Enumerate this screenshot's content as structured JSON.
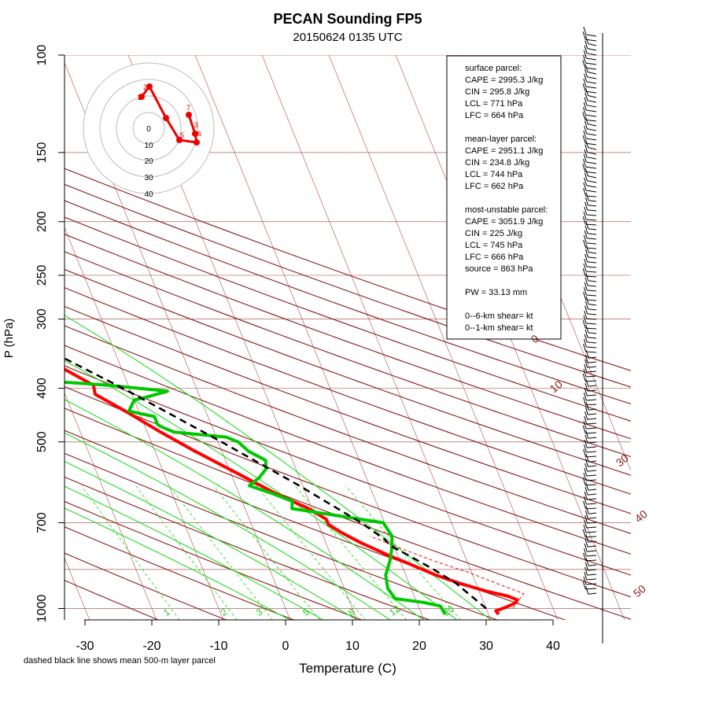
{
  "title": "PECAN Sounding FP5",
  "subtitle": "20150624 0135 UTC",
  "footnote": "dashed black line shows mean 500-m layer parcel",
  "chart_data": {
    "type": "line",
    "subtype": "skew-T log-P diagram",
    "xlabel": "Temperature (C)",
    "ylabel": "P (hPa)",
    "x_ticks": [
      "-30",
      "-20",
      "-10",
      "0",
      "10",
      "20",
      "30",
      "40"
    ],
    "y_ticks": [
      "100",
      "150",
      "200",
      "250",
      "300",
      "400",
      "500",
      "700",
      "1000"
    ],
    "y_scale": "log",
    "ylim": [
      100,
      1050
    ],
    "dry_adiabat_labels": [
      "0",
      "10",
      "30",
      "40",
      "50"
    ],
    "moist_adiabat_labels": [
      "1",
      "2",
      "3",
      "5",
      "8",
      "12",
      "20"
    ],
    "colors": {
      "temperature": "#ff0000",
      "dewpoint": "#00c800",
      "isotherm": "#8b0000",
      "mixing_ratio": "#00ee00",
      "parcel": "#000000",
      "isobar": "#b06060"
    },
    "series": [
      {
        "name": "temperature",
        "points": [
          [
            1025,
            31.5
          ],
          [
            1010,
            31.3
          ],
          [
            995,
            33.0
          ],
          [
            980,
            34.5
          ],
          [
            965,
            35.2
          ],
          [
            950,
            34.0
          ],
          [
            930,
            31.0
          ],
          [
            900,
            27.5
          ],
          [
            870,
            24.5
          ],
          [
            840,
            22.0
          ],
          [
            800,
            18.5
          ],
          [
            760,
            15.2
          ],
          [
            730,
            13.0
          ],
          [
            705,
            11.5
          ],
          [
            690,
            11.5
          ],
          [
            660,
            9.5
          ],
          [
            620,
            5.5
          ],
          [
            570,
            1.0
          ],
          [
            520,
            -4.0
          ],
          [
            480,
            -8.0
          ],
          [
            440,
            -12.0
          ],
          [
            410,
            -15.5
          ],
          [
            395,
            -15.2
          ],
          [
            370,
            -18.5
          ],
          [
            330,
            -24.0
          ],
          [
            290,
            -30.0
          ],
          [
            250,
            -36.5
          ],
          [
            210,
            -44.0
          ],
          [
            180,
            -50.0
          ],
          [
            165,
            -52.5
          ],
          [
            160,
            -51.0
          ],
          [
            150,
            -52.0
          ],
          [
            140,
            -53.0
          ],
          [
            130,
            -54.5
          ],
          [
            120,
            -56.0
          ],
          [
            115,
            -57.0
          ],
          [
            108,
            -57.5
          ],
          [
            100,
            -58.5
          ]
        ]
      },
      {
        "name": "dewpoint",
        "points": [
          [
            1025,
            23.5
          ],
          [
            990,
            23.3
          ],
          [
            975,
            21.0
          ],
          [
            960,
            17.0
          ],
          [
            920,
            16.5
          ],
          [
            870,
            17.0
          ],
          [
            820,
            18.5
          ],
          [
            780,
            19.5
          ],
          [
            740,
            20.3
          ],
          [
            700,
            19.8
          ],
          [
            660,
            7.0
          ],
          [
            640,
            7.5
          ],
          [
            620,
            5.0
          ],
          [
            600,
            2.0
          ],
          [
            580,
            4.0
          ],
          [
            560,
            5.5
          ],
          [
            540,
            6.0
          ],
          [
            520,
            4.0
          ],
          [
            500,
            3.0
          ],
          [
            490,
            1.5
          ],
          [
            480,
            -6.0
          ],
          [
            470,
            -7.5
          ],
          [
            465,
            -8.0
          ],
          [
            450,
            -8.0
          ],
          [
            440,
            -11.5
          ],
          [
            420,
            -10.0
          ],
          [
            415,
            -8.0
          ],
          [
            405,
            -4.5
          ],
          [
            395,
            -13.0
          ],
          [
            385,
            -26.0
          ],
          [
            370,
            -37.0
          ],
          [
            350,
            -37.5
          ],
          [
            330,
            -38.5
          ],
          [
            310,
            -37.0
          ],
          [
            300,
            -34.0
          ],
          [
            290,
            -36.5
          ],
          [
            285,
            -34.0
          ],
          [
            270,
            -25.0
          ],
          [
            265,
            -31.0
          ],
          [
            255,
            -38.5
          ],
          [
            245,
            -41.0
          ],
          [
            240,
            -33.0
          ],
          [
            232,
            -32.0
          ],
          [
            225,
            -31.5
          ],
          [
            210,
            -32.5
          ],
          [
            200,
            -35.5
          ],
          [
            185,
            -39.0
          ],
          [
            170,
            -42.5
          ],
          [
            150,
            -46.0
          ],
          [
            140,
            -47.5
          ],
          [
            130,
            -48.0
          ],
          [
            120,
            -49.5
          ],
          [
            110,
            -52.5
          ],
          [
            100,
            -53.0
          ]
        ]
      },
      {
        "name": "parcel",
        "dashed": true,
        "points": [
          [
            1000,
            30.0
          ],
          [
            900,
            27.0
          ],
          [
            850,
            24.5
          ],
          [
            800,
            21.5
          ],
          [
            771,
            19.5
          ],
          [
            750,
            19.0
          ],
          [
            700,
            16.5
          ],
          [
            600,
            9.5
          ],
          [
            500,
            0.5
          ],
          [
            400,
            -11.0
          ],
          [
            300,
            -27.0
          ],
          [
            200,
            -46.0
          ],
          [
            150,
            -55.0
          ],
          [
            120,
            -60.0
          ],
          [
            100,
            -64.0
          ]
        ]
      }
    ],
    "hodograph": {
      "ring_labels": [
        "0",
        "10",
        "20",
        "30",
        "40"
      ],
      "point_labels": [
        "1",
        "2",
        "3",
        "5",
        "6",
        "7"
      ]
    },
    "wind_barbs": true
  },
  "info_box": {
    "surface_header": "surface parcel:",
    "surface_cape": "CAPE = 2995.3 J/kg",
    "surface_cin": "CIN = 295.8 J/kg",
    "surface_lcl": "LCL = 771 hPa",
    "surface_lfc": "LFC = 664 hPa",
    "mixed_header": "mean-layer parcel:",
    "mixed_cape": "CAPE = 2951.1 J/kg",
    "mixed_cin": "CIN = 234.8 J/kg",
    "mixed_lcl": "LCL = 744 hPa",
    "mixed_lfc": "LFC = 662 hPa",
    "mu_header": "most-unstable parcel:",
    "mu_cape": "CAPE = 3051.9 J/kg",
    "mu_cin": "CIN = 225 J/kg",
    "mu_lcl": "LCL = 745 hPa",
    "mu_lfc": "LFC = 666 hPa",
    "mu_source": "source = 863 hPa",
    "pw": "PW =  33.13 mm",
    "shear6": "0--6-km shear=  kt",
    "shear1": "0--1-km shear=  kt"
  }
}
